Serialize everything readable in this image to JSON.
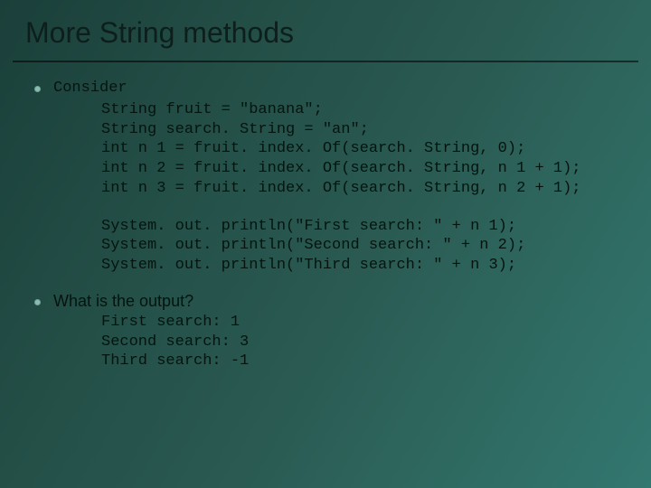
{
  "title": "More String methods",
  "colors": {
    "bg_gradient_start": "#1b3f3a",
    "bg_gradient_end": "#327770",
    "title_color": "#0d1f1c",
    "text_color": "#04140f",
    "bullet_color": "#88bdb1",
    "rule_color": "rgba(0,0,0,0.55)"
  },
  "fontsizes": {
    "title_pt": 32,
    "body_pt": 17
  },
  "bullets": [
    {
      "label": "Consider"
    },
    {
      "label": "What is the output?"
    }
  ],
  "code1": {
    "lines": [
      "String fruit = \"banana\";",
      "String search. String = \"an\";",
      "int n 1 = fruit. index. Of(search. String, 0);",
      "int n 2 = fruit. index. Of(search. String, n 1 + 1);",
      "int n 3 = fruit. index. Of(search. String, n 2 + 1);"
    ]
  },
  "code2": {
    "lines": [
      "System. out. println(\"First search: \" + n 1);",
      "System. out. println(\"Second search: \" + n 2);",
      "System. out. println(\"Third search: \" + n 3);"
    ]
  },
  "output": {
    "lines": [
      "First search: 1",
      "Second search: 3",
      "Third search: -1"
    ]
  }
}
